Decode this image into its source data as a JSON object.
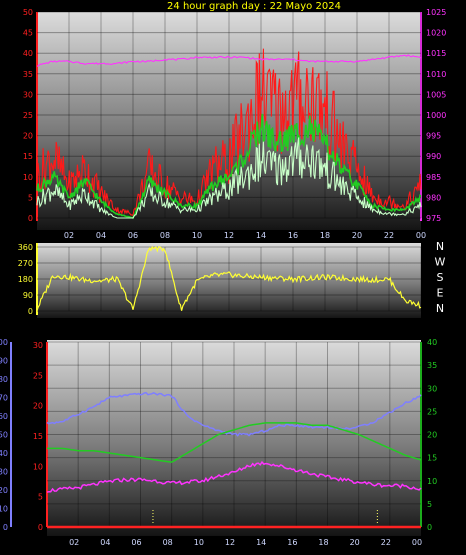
{
  "title": "24 hour graph day : 22 Mayo 2024",
  "colors": {
    "gust": "#ff1a1a",
    "avg_wind": "#22cc22",
    "wind": "#c8ffc8",
    "pressure": "#ff33ff",
    "direction": "#ffff33",
    "humidity": "#7f7fff",
    "temp": "#22cc22",
    "dewpoint": "#ff33ff",
    "rain": "#ff2222",
    "sun_marker": "#ffff66",
    "left_axis_red": "#ff2020",
    "right_axis_magenta": "#ff33ff",
    "left_axis_blue": "#8080ff",
    "right_axis_green": "#22cc22"
  },
  "chart_data": [
    {
      "type": "line",
      "panel": "wind-pressure",
      "x_ticks": [
        "02",
        "04",
        "06",
        "08",
        "10",
        "12",
        "14",
        "16",
        "18",
        "20",
        "22",
        "00"
      ],
      "yleft_ticks": [
        "0",
        "5",
        "10",
        "15",
        "20",
        "25",
        "30",
        "35",
        "40",
        "45",
        "50"
      ],
      "yleft_lim": [
        0,
        50
      ],
      "yright_ticks": [
        "975",
        "980",
        "985",
        "990",
        "995",
        "1000",
        "1005",
        "1010",
        "1015",
        "1020",
        "1025"
      ],
      "yright_lim": [
        975,
        1025
      ],
      "x_hours": [
        0,
        1,
        2,
        3,
        4,
        5,
        6,
        7,
        8,
        9,
        10,
        11,
        12,
        13,
        14,
        15,
        16,
        17,
        18,
        19,
        20,
        21,
        22,
        23,
        24
      ],
      "series": [
        {
          "key": "gust",
          "values": [
            10,
            15,
            8,
            12,
            6,
            2,
            1,
            12,
            8,
            5,
            4,
            12,
            14,
            22,
            30,
            26,
            28,
            30,
            26,
            18,
            12,
            5,
            4,
            3,
            8
          ]
        },
        {
          "key": "avg_wind",
          "values": [
            7,
            10,
            5,
            9,
            4,
            1,
            0,
            9,
            6,
            3,
            3,
            8,
            10,
            15,
            22,
            18,
            20,
            22,
            18,
            12,
            8,
            3,
            2,
            2,
            5
          ]
        },
        {
          "key": "wind",
          "values": [
            4,
            7,
            3,
            6,
            2,
            0,
            0,
            6,
            4,
            2,
            2,
            5,
            7,
            10,
            14,
            12,
            14,
            15,
            12,
            8,
            5,
            2,
            1,
            1,
            3
          ]
        },
        {
          "key": "pressure",
          "axis": "right",
          "values": [
            1012,
            1013,
            1013,
            1012.5,
            1012.5,
            1012.5,
            1013,
            1013,
            1013.5,
            1013.5,
            1014,
            1014,
            1014,
            1014,
            1013.5,
            1013.5,
            1013.5,
            1013,
            1013,
            1013,
            1013,
            1013.5,
            1014,
            1014.5,
            1014
          ]
        }
      ]
    },
    {
      "type": "line",
      "panel": "wind-direction",
      "x_hours_range": [
        0,
        24
      ],
      "y_ticks": [
        "360",
        "270",
        "180",
        "90",
        "0"
      ],
      "y_lim": [
        0,
        360
      ],
      "compass_labels": [
        "N",
        "W",
        "S",
        "E",
        "N"
      ],
      "series": [
        {
          "key": "direction",
          "values": [
            10,
            200,
            190,
            175,
            170,
            180,
            10,
            355,
            350,
            10,
            170,
            200,
            205,
            195,
            190,
            185,
            180,
            185,
            190,
            185,
            180,
            175,
            180,
            60,
            30
          ]
        }
      ]
    },
    {
      "type": "line",
      "panel": "temp-humidity",
      "x_ticks": [
        "02",
        "04",
        "06",
        "08",
        "10",
        "12",
        "14",
        "16",
        "18",
        "20",
        "22",
        "00"
      ],
      "yleft_blue_ticks": [
        "0",
        "10",
        "20",
        "30",
        "40",
        "50",
        "60",
        "70",
        "80",
        "90",
        "100"
      ],
      "yleft_blue_lim": [
        0,
        100
      ],
      "yleft_red_ticks": [
        "0",
        "5",
        "10",
        "15",
        "20",
        "25",
        "30"
      ],
      "yleft_red_lim": [
        0,
        30
      ],
      "yright_ticks": [
        "0",
        "5",
        "10",
        "15",
        "20",
        "25",
        "30",
        "35",
        "40"
      ],
      "yright_lim": [
        0,
        40
      ],
      "x_hours": [
        0,
        1,
        2,
        3,
        4,
        5,
        6,
        7,
        8,
        9,
        10,
        11,
        12,
        13,
        14,
        15,
        16,
        17,
        18,
        19,
        20,
        21,
        22,
        23,
        24
      ],
      "series": [
        {
          "key": "humidity",
          "axis": "blue",
          "values": [
            56,
            57,
            61,
            65,
            70,
            71,
            72,
            72,
            71,
            60,
            55,
            52,
            50,
            50,
            52,
            55,
            55,
            54,
            54,
            53,
            54,
            57,
            62,
            67,
            71
          ]
        },
        {
          "key": "temp",
          "axis": "right",
          "values": [
            17,
            17,
            16.5,
            16.5,
            16,
            15.5,
            15,
            14.5,
            14,
            16,
            18,
            20,
            21,
            22,
            22.5,
            22.5,
            22.5,
            22,
            22,
            21,
            20,
            18.5,
            17,
            15.5,
            14.5
          ]
        },
        {
          "key": "dewpoint",
          "axis": "red",
          "values": [
            6,
            6.2,
            6.5,
            7,
            7.5,
            7.8,
            7.8,
            7.6,
            7.2,
            7.4,
            7.6,
            8.4,
            9,
            10.2,
            10.6,
            10,
            9.4,
            8.8,
            8.2,
            7.8,
            7.4,
            7,
            6.8,
            6.8,
            6.2
          ]
        },
        {
          "key": "rain",
          "axis": "red",
          "values": [
            0,
            0,
            0,
            0,
            0,
            0,
            0,
            0,
            0,
            0,
            0,
            0,
            0,
            0,
            0,
            0,
            0,
            0,
            0,
            0,
            0,
            0,
            0,
            0,
            0
          ]
        }
      ],
      "sun_markers_hours": [
        6.8,
        21.2
      ]
    }
  ]
}
